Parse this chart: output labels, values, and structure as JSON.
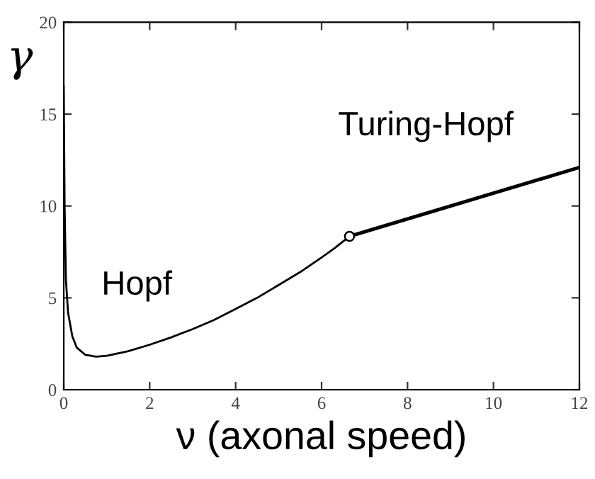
{
  "chart_data": {
    "type": "line",
    "xlabel": "ν (axonal speed)",
    "ylabel": "γ",
    "xlim": [
      0,
      12
    ],
    "ylim": [
      0,
      20
    ],
    "xticks": [
      0,
      2,
      4,
      6,
      8,
      10,
      12
    ],
    "yticks": [
      0,
      5,
      10,
      15,
      20
    ],
    "grid": false,
    "legend": false,
    "series": [
      {
        "name": "Hopf",
        "color": "#000000",
        "line_style": "solid",
        "x": [
          0,
          0.02,
          0.05,
          0.1,
          0.2,
          0.3,
          0.5,
          0.75,
          1,
          1.5,
          2,
          2.5,
          3,
          3.5,
          4,
          4.5,
          5,
          5.5,
          6,
          6.3,
          6.65
        ],
        "values": [
          16.5,
          10,
          6,
          4.2,
          2.9,
          2.3,
          1.9,
          1.8,
          1.85,
          2.1,
          2.45,
          2.85,
          3.3,
          3.8,
          4.4,
          5.0,
          5.7,
          6.4,
          7.2,
          7.7,
          8.35
        ]
      },
      {
        "name": "Turing-Hopf",
        "color": "#000000",
        "line_style": "solid",
        "x": [
          6.65,
          12
        ],
        "values": [
          8.35,
          12.1
        ]
      },
      {
        "type": "scatter",
        "marker": "circle",
        "color": "#000000",
        "x": [
          6.65
        ],
        "values": [
          8.35
        ]
      }
    ]
  }
}
